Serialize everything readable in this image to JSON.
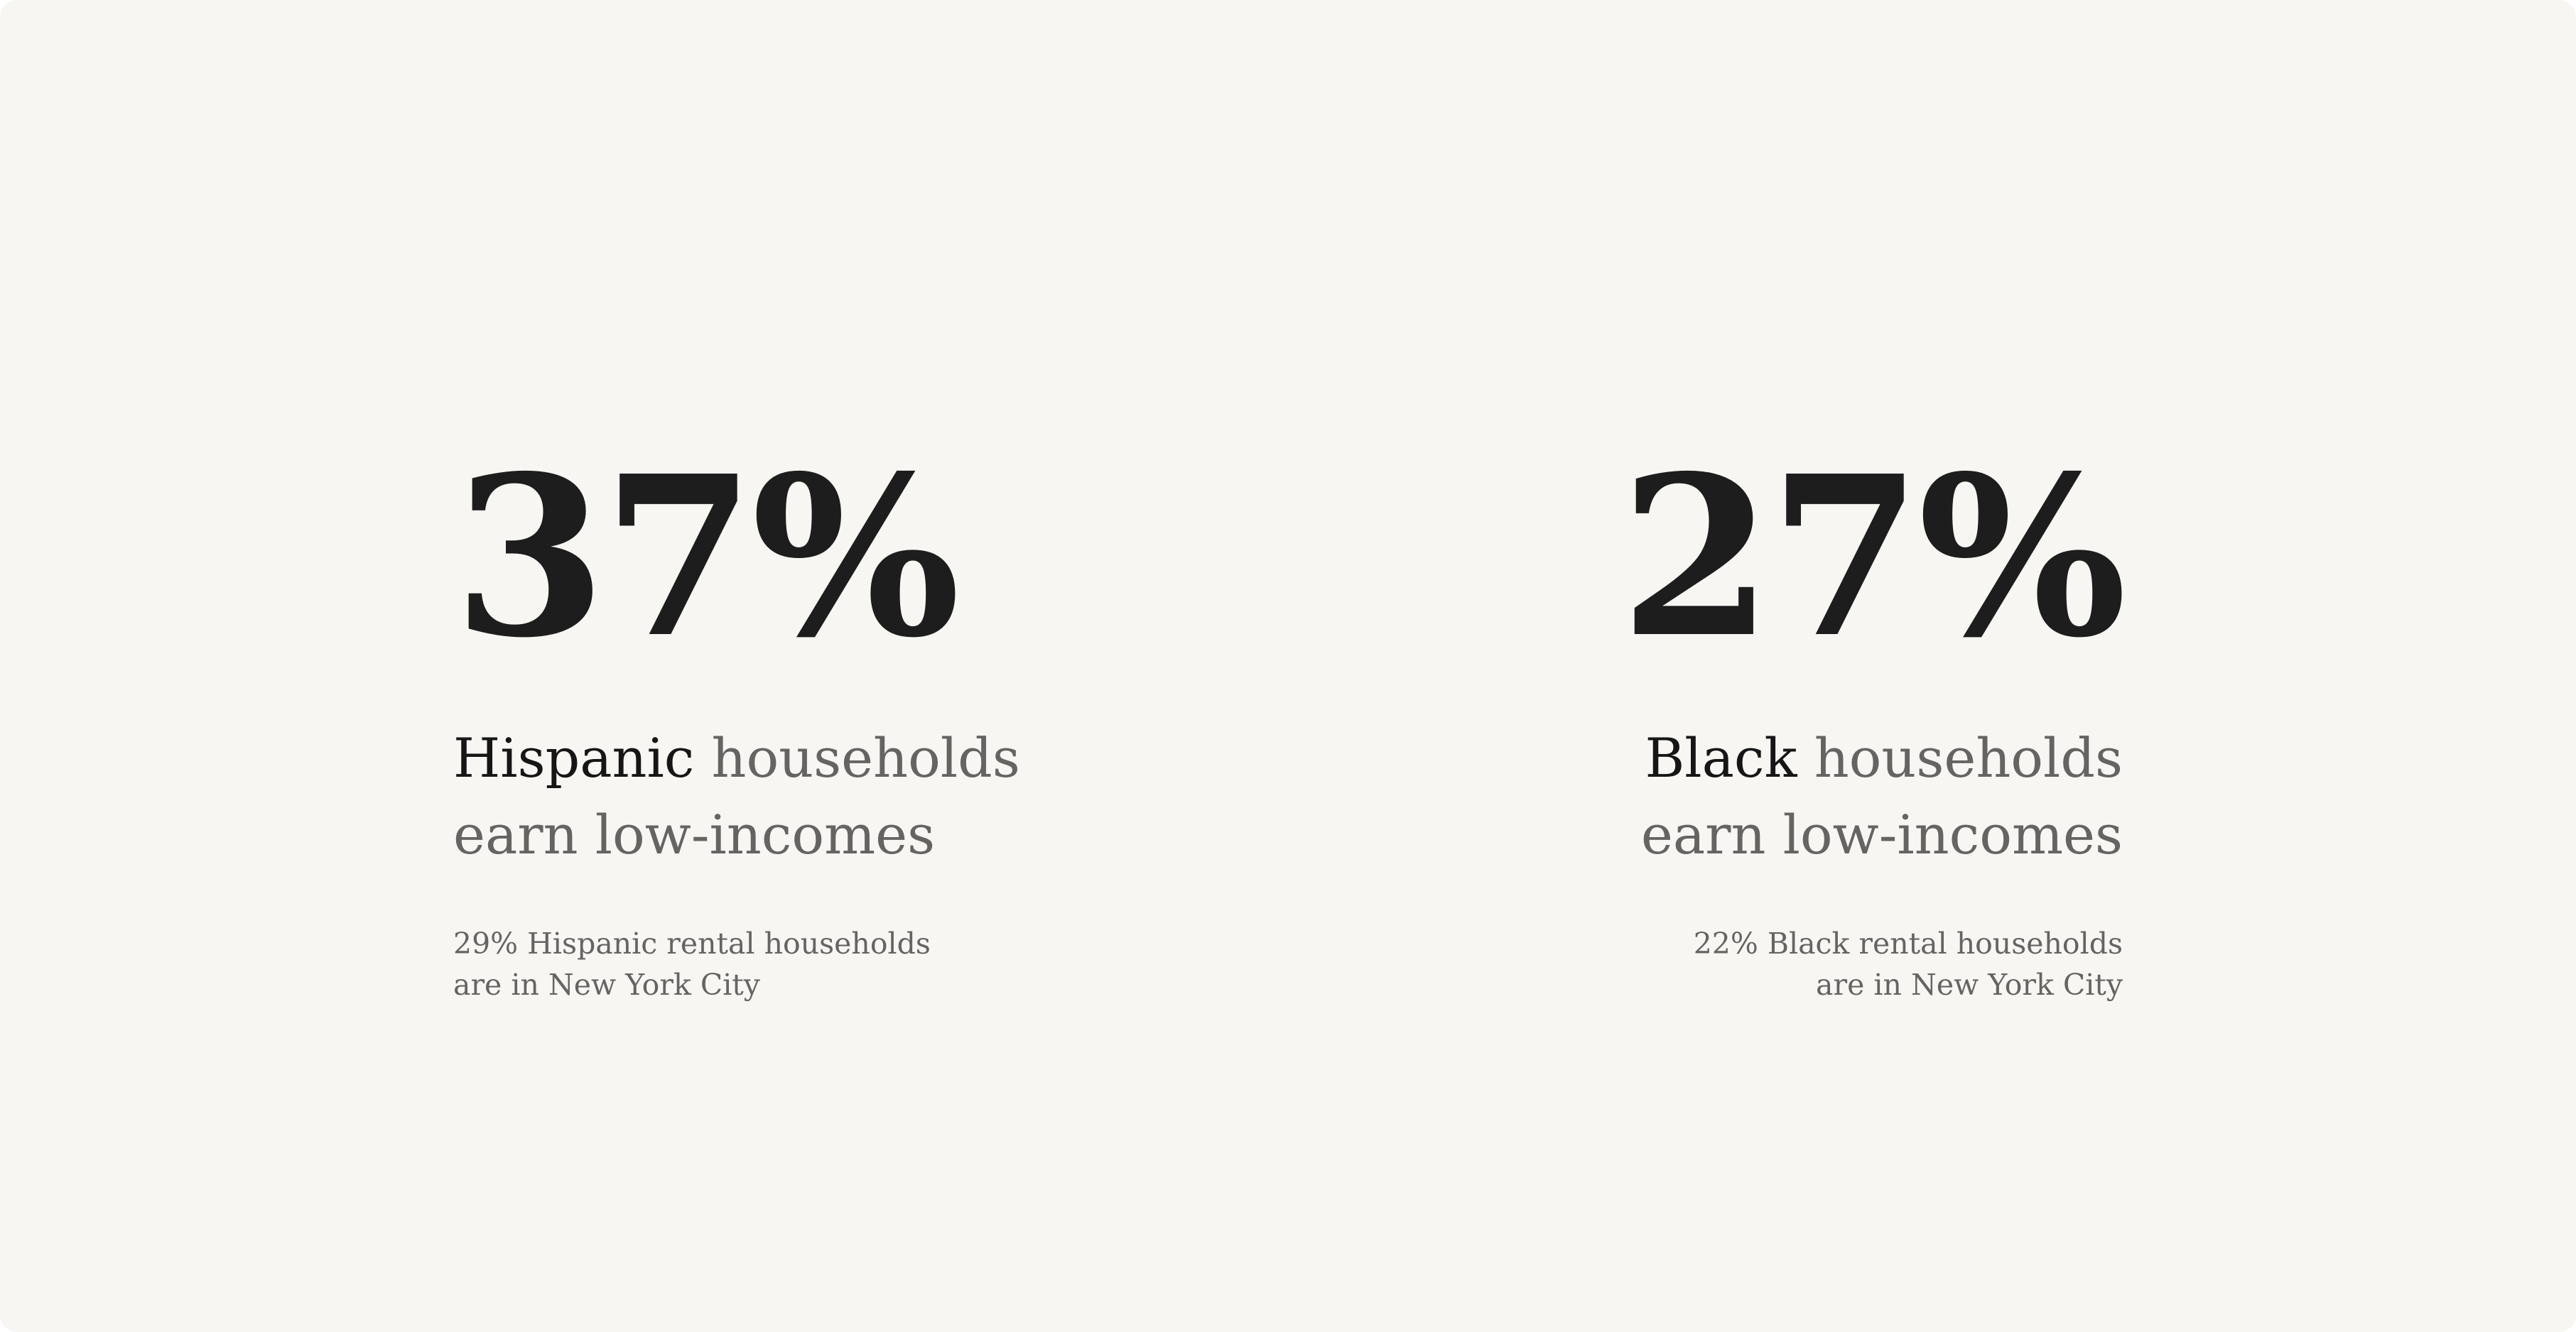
{
  "stats": [
    {
      "value": "37%",
      "group": "Hispanic",
      "headline_rest": " households",
      "headline_line2": "earn low-incomes",
      "note_line1": "29% Hispanic rental households",
      "note_line2": "are in New York City"
    },
    {
      "value": "27%",
      "group": "Black",
      "headline_rest": " households",
      "headline_line2": "earn low-incomes",
      "note_line1": "22% Black rental households",
      "note_line2": "are in New York City"
    }
  ],
  "colors": {
    "background": "#f7f6f3",
    "primary_text": "#1d1d1d",
    "secondary_text": "#666463"
  }
}
